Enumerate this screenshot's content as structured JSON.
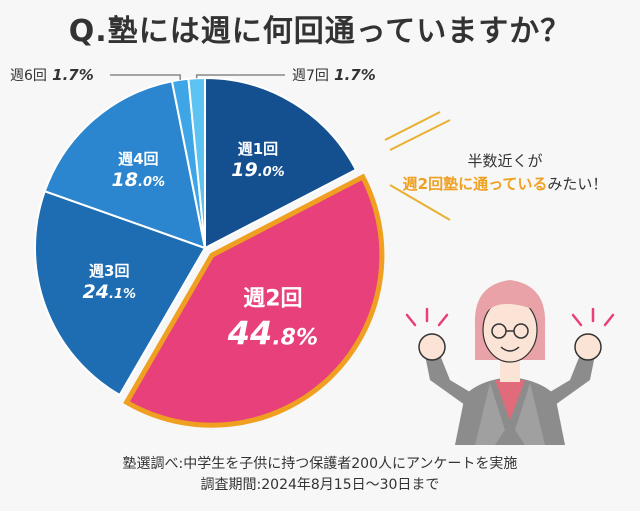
{
  "title": "Q.塾には週に何回通っていますか？",
  "chart_data": {
    "type": "pie",
    "slices": [
      {
        "label": "週1回",
        "value": 19.0,
        "color": "#14508f"
      },
      {
        "label": "週2回",
        "value": 44.8,
        "color": "#e8407a"
      },
      {
        "label": "週3回",
        "value": 24.1,
        "color": "#1e6cb2"
      },
      {
        "label": "週4回",
        "value": 18.0,
        "color": "#2b86cf"
      },
      {
        "label": "週6回",
        "value": 1.7,
        "color": "#3ea6e6"
      },
      {
        "label": "週7回",
        "value": 1.7,
        "color": "#5cc3f2"
      }
    ],
    "unit": "%",
    "emphasized": "週2回",
    "emphasis_color": "#f0a020"
  },
  "callout": {
    "line1": "半数近くが",
    "highlight": "週2回塾に通っている",
    "suffix": "みたい！"
  },
  "footnote": {
    "line1": "塾選調べ:中学生を子供に持つ保護者200人にアンケートを実施",
    "line2": "調査期間:2024年8月15日〜30日まで"
  }
}
